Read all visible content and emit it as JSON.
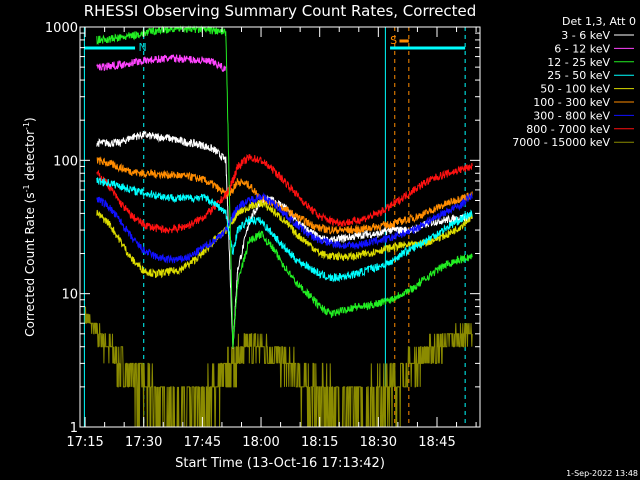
{
  "chart_data": {
    "type": "line",
    "title": "RHESSI Observing Summary Count Rates, Corrected",
    "xlabel": "Start Time (13-Oct-16 17:13:42)",
    "ylabel": "Corrected Count Rate (s⁻¹ detector⁻¹)",
    "ylabel_parts": [
      "Corrected Count Rate (s",
      "-1",
      " detector",
      "-1",
      ")"
    ],
    "yscale": "log",
    "ylim": [
      1,
      1000
    ],
    "xlim_min": [
      17.25,
      18.93
    ],
    "x_ticks": [
      {
        "min": 17.25,
        "label": "17:15"
      },
      {
        "min": 17.5,
        "label": "17:30"
      },
      {
        "min": 17.75,
        "label": "17:45"
      },
      {
        "min": 18.0,
        "label": "18:00"
      },
      {
        "min": 18.25,
        "label": "18:15"
      },
      {
        "min": 18.5,
        "label": "18:30"
      },
      {
        "min": 18.75,
        "label": "18:45"
      }
    ],
    "y_ticks": [
      {
        "value": 1,
        "label": "1"
      },
      {
        "value": 10,
        "label": "10"
      },
      {
        "value": 100,
        "label": "100"
      },
      {
        "value": 1000,
        "label": "1000"
      }
    ],
    "legend_title": "Det 1,3, Att 0",
    "legend_position": "right",
    "x_hours": [
      17.23,
      17.25,
      17.3,
      17.35,
      17.4,
      17.45,
      17.5,
      17.55,
      17.6,
      17.65,
      17.7,
      17.75,
      17.8,
      17.85,
      17.88,
      17.9,
      17.95,
      18.0,
      18.05,
      18.1,
      18.15,
      18.2,
      18.25,
      18.3,
      18.35,
      18.4,
      18.45,
      18.5,
      18.55,
      18.6,
      18.65,
      18.7,
      18.75,
      18.8,
      18.85,
      18.9
    ],
    "series": [
      {
        "name": "3 - 6 keV",
        "color": "#ffffff",
        "values": [
          null,
          null,
          135,
          135,
          135,
          150,
          155,
          150,
          148,
          140,
          135,
          130,
          120,
          100,
          4,
          15,
          35,
          50,
          50,
          45,
          35,
          30,
          26,
          25,
          26,
          27,
          28,
          28,
          30,
          30,
          30,
          33,
          35,
          36,
          37,
          38
        ]
      },
      {
        "name": "6 - 12 keV",
        "color": "#ff44ff",
        "values": [
          null,
          null,
          500,
          510,
          520,
          540,
          560,
          570,
          580,
          580,
          570,
          560,
          540,
          480,
          null,
          null,
          null,
          null,
          null,
          null,
          null,
          null,
          null,
          null,
          null,
          null,
          null,
          null,
          null,
          null,
          null,
          null,
          null,
          null,
          null,
          null
        ]
      },
      {
        "name": "12 - 25 keV",
        "color": "#22ee22",
        "values": [
          null,
          null,
          800,
          810,
          830,
          860,
          900,
          940,
          960,
          980,
          970,
          960,
          940,
          900,
          4,
          12,
          25,
          28,
          22,
          16,
          12,
          10,
          8,
          7,
          7.5,
          8,
          8,
          8.5,
          9,
          10,
          11,
          13,
          15,
          17,
          18,
          19
        ]
      },
      {
        "name": "25 - 50 keV",
        "color": "#00ffff",
        "values": [
          null,
          null,
          70,
          68,
          64,
          60,
          57,
          55,
          53,
          52,
          52,
          53,
          48,
          40,
          20,
          30,
          36,
          35,
          28,
          22,
          18,
          16,
          14,
          13,
          13.5,
          14,
          15,
          16,
          17,
          20,
          22,
          25,
          28,
          32,
          36,
          40
        ]
      },
      {
        "name": "50 - 100 keV",
        "color": "#dddd00",
        "values": [
          null,
          null,
          40,
          34,
          25,
          18,
          15,
          14,
          14.5,
          15,
          17,
          20,
          25,
          30,
          35,
          40,
          45,
          48,
          42,
          35,
          28,
          24,
          20,
          19,
          19,
          19,
          20,
          21,
          22,
          23,
          23,
          24,
          26,
          28,
          32,
          38
        ]
      },
      {
        "name": "100 - 300 keV",
        "color": "#ff8c00",
        "values": [
          null,
          null,
          100,
          95,
          88,
          82,
          80,
          79,
          78,
          77,
          75,
          72,
          65,
          55,
          60,
          70,
          65,
          52,
          48,
          43,
          38,
          34,
          31,
          30,
          30,
          30,
          31,
          32,
          33,
          35,
          37,
          40,
          44,
          48,
          52,
          55
        ]
      },
      {
        "name": "300 - 800 keV",
        "color": "#1111ff",
        "values": [
          null,
          null,
          52,
          45,
          35,
          26,
          21,
          19,
          18,
          18,
          19,
          22,
          25,
          30,
          38,
          45,
          50,
          54,
          48,
          40,
          33,
          28,
          25,
          24,
          23,
          23,
          24,
          25,
          26,
          28,
          30,
          34,
          38,
          42,
          46,
          55
        ]
      },
      {
        "name": "800 - 7000 keV",
        "color": "#ff1111",
        "values": [
          null,
          null,
          80,
          65,
          48,
          38,
          33,
          31,
          30,
          31,
          33,
          37,
          44,
          55,
          70,
          90,
          105,
          100,
          85,
          70,
          56,
          45,
          38,
          35,
          34,
          35,
          37,
          40,
          45,
          52,
          60,
          68,
          75,
          80,
          85,
          90
        ]
      },
      {
        "name": "7000 - 15000 keV",
        "color": "#8b8b00",
        "values": [
          null,
          7,
          5,
          4,
          3,
          2.5,
          2,
          1.5,
          1.3,
          1.2,
          1.3,
          1.5,
          2,
          2.5,
          3,
          3.5,
          4,
          4,
          3.5,
          3,
          2.5,
          2,
          1.7,
          1.5,
          1.4,
          1.4,
          1.5,
          1.8,
          2,
          2.5,
          3,
          3.5,
          4,
          4.5,
          5,
          5
        ]
      }
    ],
    "annotations": [
      {
        "text": "N",
        "color": "#00cccc"
      },
      {
        "text": "S",
        "color": "#ff8c00"
      }
    ],
    "colors": {
      "axis": "#ffffff",
      "saa_bar": "#00ffff",
      "flag_orange": "#ff8c00"
    }
  },
  "footer": {
    "timestamp": "1-Sep-2022 13:48"
  }
}
